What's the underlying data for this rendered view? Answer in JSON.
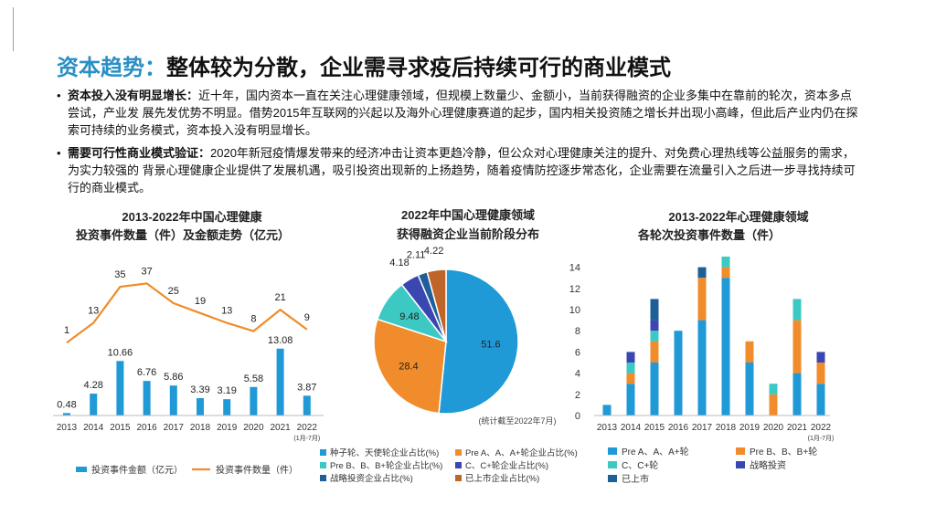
{
  "header": {
    "title_accent": "资本趋势：",
    "title_rest": "整体较为分散，企业需寻求疫后持续可行的商业模式"
  },
  "bullets": [
    {
      "lead": "资本投入没有明显增长：",
      "text": "近十年，国内资本一直在关注心理健康领域，但规模上数量少、金额小，当前获得融资的企业多集中在靠前的轮次，资本多点尝试，产业发 展先发优势不明显。借势2015年互联网的兴起以及海外心理健康赛道的起步，国内相关投资随之增长并出现小高峰，但此后产业内仍在探索可持续的业务模式，资本投入没有明显增长。"
    },
    {
      "lead": "需要可行性商业模式验证：",
      "text": "2020年新冠疫情爆发带来的经济冲击让资本更趋冷静，但公众对心理健康关注的提升、对免费心理热线等公益服务的需求，为实力较强的 背景心理健康企业提供了发展机遇，吸引投资出现新的上扬趋势，随着疫情防控逐步常态化，企业需要在流量引入之后进一步寻找持续可行的商业模式。"
    }
  ],
  "colors": {
    "accent": "#2a8fc5",
    "blue": "#1f9ad6",
    "orange": "#f08c2b",
    "teal": "#3cc9c4",
    "navy": "#3b47b0",
    "darkblue": "#1e5f9a",
    "brown": "#c0652a"
  },
  "chart_data": [
    {
      "type": "bar",
      "title_line1": "2013-2022年中国心理健康",
      "title_line2": "投资事件数量（件）及金额走势（亿元）",
      "categories": [
        "2013",
        "2014",
        "2015",
        "2016",
        "2017",
        "2018",
        "2019",
        "2020",
        "2021",
        "2022"
      ],
      "category_note": "(1月-7月)",
      "series": [
        {
          "name": "投资事件金额（亿元）",
          "type": "bar",
          "values": [
            0.48,
            4.28,
            10.66,
            6.76,
            5.86,
            3.39,
            3.19,
            5.58,
            13.08,
            3.87
          ]
        },
        {
          "name": "投资事件数量（件）",
          "type": "line",
          "values": [
            1,
            13,
            35,
            37,
            25,
            19,
            13,
            8,
            21,
            9
          ]
        }
      ],
      "legend_position": "bottom"
    },
    {
      "type": "pie",
      "title_line1": "2022年中国心理健康领域",
      "title_line2": "获得融资企业当前阶段分布",
      "note": "(统计截至2022年7月)",
      "slices": [
        {
          "name": "种子轮、天使轮企业占比(%)",
          "value": 51.6
        },
        {
          "name": "Pre A、A、A+轮企业占比(%)",
          "value": 28.4
        },
        {
          "name": "Pre B、B、B+轮企业占比(%)",
          "value": 9.48
        },
        {
          "name": "C、C+轮企业占比(%)",
          "value": 4.18
        },
        {
          "name": "战略投资企业占比(%)",
          "value": 2.11
        },
        {
          "name": "已上市企业占比(%)",
          "value": 4.22
        }
      ],
      "legend_position": "bottom"
    },
    {
      "type": "bar",
      "stacked": true,
      "title_line1": "2013-2022年心理健康领域",
      "title_line2": "各轮次投资事件数量（件）",
      "categories": [
        "2013",
        "2014",
        "2015",
        "2016",
        "2017",
        "2018",
        "2019",
        "2020",
        "2021",
        "2022"
      ],
      "category_note": "(1月-7月)",
      "ylim": [
        0,
        14
      ],
      "yticks": [
        0,
        2,
        4,
        6,
        8,
        10,
        12,
        14
      ],
      "series": [
        {
          "name": "Pre A、A、A+轮",
          "values": [
            1,
            3,
            5,
            8,
            9,
            13,
            5,
            0,
            4,
            3
          ]
        },
        {
          "name": "Pre B、B、B+轮",
          "values": [
            0,
            1,
            2,
            0,
            4,
            1,
            2,
            2,
            5,
            2
          ]
        },
        {
          "name": "C、C+轮",
          "values": [
            0,
            1,
            1,
            0,
            0,
            1,
            0,
            1,
            2,
            0
          ]
        },
        {
          "name": "战略投资",
          "values": [
            0,
            1,
            1,
            0,
            0,
            0,
            0,
            0,
            0,
            1
          ]
        },
        {
          "name": "已上市",
          "values": [
            0,
            0,
            2,
            0,
            1,
            0,
            0,
            0,
            0,
            0
          ]
        }
      ],
      "legend_position": "bottom"
    }
  ]
}
